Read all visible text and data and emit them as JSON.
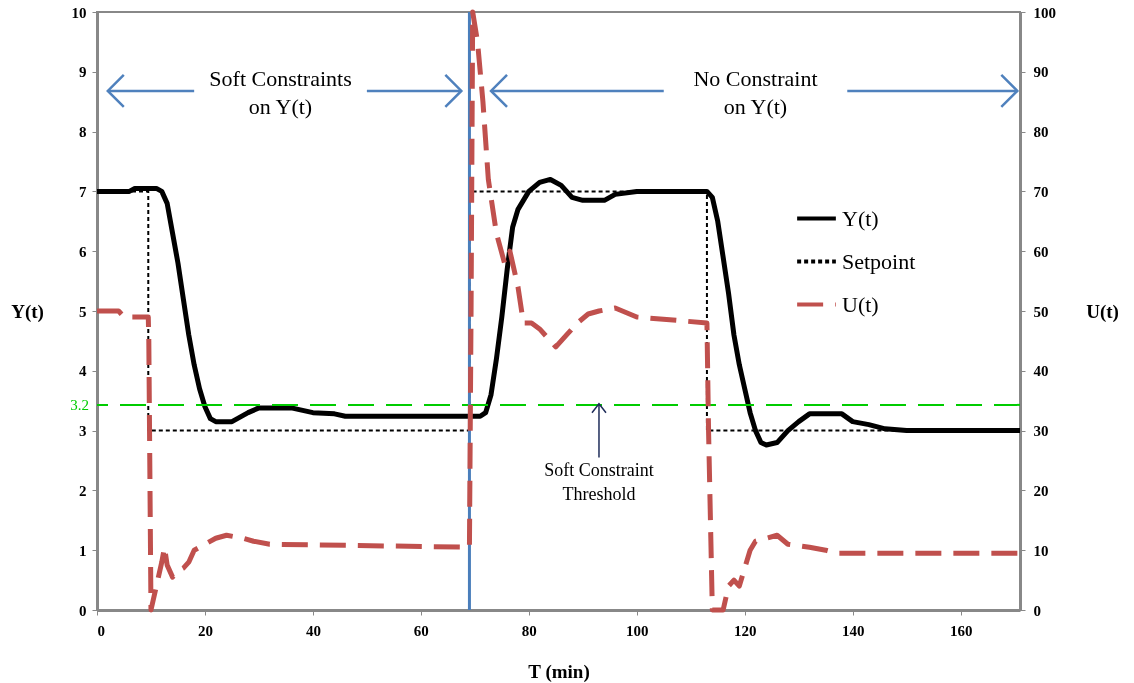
{
  "chart_data": {
    "type": "line",
    "xlabel": "T  (min)",
    "ylabel": "Y(t)",
    "y2label": "U(t)",
    "xlim": [
      0,
      171
    ],
    "xticks": [
      0,
      20,
      40,
      60,
      80,
      100,
      120,
      140,
      160
    ],
    "ylim": [
      0,
      10
    ],
    "yticks": [
      0,
      1,
      2,
      3,
      4,
      5,
      6,
      7,
      8,
      9,
      10
    ],
    "y2lim": [
      0,
      100
    ],
    "y2ticks": [
      0,
      10,
      20,
      30,
      40,
      50,
      60,
      70,
      80,
      90,
      100
    ],
    "grid": false,
    "legend": "right",
    "marker": "none",
    "series": [
      {
        "name": "Y(t)",
        "color": "#000000",
        "line_style": "solid",
        "x": [
          0,
          6,
          7,
          11,
          12,
          13,
          14,
          15,
          16,
          17,
          18,
          19,
          20,
          21,
          22,
          25,
          26,
          28,
          30,
          36,
          40,
          44,
          46,
          70,
          71,
          72,
          73,
          74,
          75,
          76,
          77,
          78,
          80,
          82,
          84,
          86,
          88,
          90,
          94,
          96,
          100,
          113,
          114,
          115,
          116,
          117,
          118,
          119,
          120,
          121,
          122,
          123,
          124,
          126,
          128,
          130,
          132,
          134,
          138,
          140,
          143,
          146,
          150,
          171
        ],
        "values": [
          7.0,
          7.0,
          7.05,
          7.05,
          7.0,
          6.8,
          6.3,
          5.8,
          5.2,
          4.6,
          4.1,
          3.7,
          3.4,
          3.2,
          3.15,
          3.15,
          3.2,
          3.3,
          3.38,
          3.38,
          3.3,
          3.28,
          3.24,
          3.24,
          3.24,
          3.3,
          3.6,
          4.2,
          4.9,
          5.7,
          6.4,
          6.7,
          7.0,
          7.15,
          7.2,
          7.1,
          6.9,
          6.85,
          6.85,
          6.95,
          7.0,
          7.0,
          6.9,
          6.5,
          5.9,
          5.3,
          4.6,
          4.1,
          3.7,
          3.3,
          3.0,
          2.8,
          2.76,
          2.8,
          3.0,
          3.15,
          3.28,
          3.28,
          3.28,
          3.15,
          3.1,
          3.03,
          3.0,
          3.0
        ]
      },
      {
        "name": "Setpoint",
        "color": "#000000",
        "line_style": "dotted",
        "x": [
          0,
          9.5,
          9.5,
          69,
          69,
          113,
          113,
          171
        ],
        "values": [
          7,
          7,
          3,
          3,
          7,
          7,
          3,
          3
        ]
      },
      {
        "name": "U(t)",
        "color": "#c0504d",
        "line_style": "dashed",
        "axis": "y2",
        "x": [
          0,
          4,
          5,
          9.5,
          9.6,
          10,
          11,
          12,
          12.5,
          13,
          14,
          15,
          16,
          17,
          18,
          20,
          22,
          24,
          27,
          29,
          32,
          69,
          69.3,
          69.6,
          70.5,
          71.5,
          72.5,
          74,
          75.5,
          76.5,
          78,
          79,
          80.5,
          82,
          84,
          85,
          87,
          89,
          91,
          93,
          96,
          100,
          113,
          113.3,
          114,
          116,
          117,
          118,
          119,
          120,
          121,
          122,
          124,
          126,
          128,
          132,
          135,
          137,
          171
        ],
        "values": [
          50,
          50,
          49,
          49,
          45,
          0,
          4,
          8,
          10.5,
          7.5,
          5.5,
          6.5,
          7,
          8,
          10,
          11,
          12,
          12.5,
          12,
          11.5,
          11,
          10.5,
          50,
          100,
          95,
          85,
          72,
          63,
          58,
          60,
          54,
          48,
          48,
          47,
          45,
          44,
          46,
          48,
          49.5,
          50,
          50.5,
          49,
          48,
          30,
          0,
          0,
          4,
          5,
          4,
          7,
          10,
          11.5,
          12,
          12.5,
          11,
          10.5,
          10,
          9.5,
          9.5
        ]
      }
    ],
    "ref_lines": [
      {
        "axis": "y",
        "value": 3.43,
        "color": "#00cc00",
        "line_style": "dashed"
      },
      {
        "axis": "x",
        "value": 69,
        "color": "#4a7ebb",
        "line_style": "solid"
      }
    ],
    "annotations": [
      "Soft Constraints\non Y(t)",
      "No Constraint\non Y(t)",
      {
        "text": "Soft Constraint\nThreshold",
        "x": 93,
        "y": 3.43
      },
      "3.2"
    ]
  }
}
